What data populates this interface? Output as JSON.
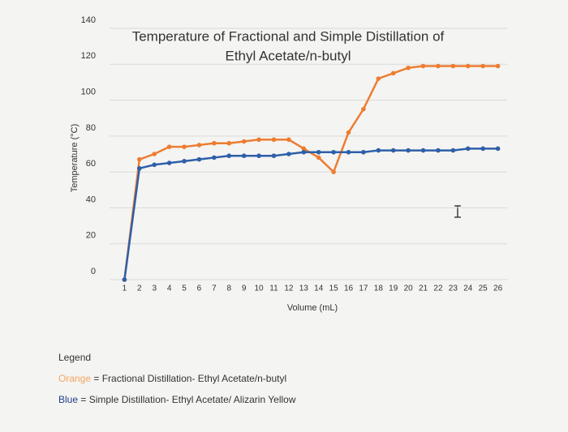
{
  "chart_data": {
    "type": "line",
    "title": [
      "Temperature of Fractional and Simple Distillation of",
      "Ethyl Acetate/n-butyl"
    ],
    "y_label": "Temperature (°C)",
    "x_label": "Volume (mL)",
    "x": [
      1,
      2,
      3,
      4,
      5,
      6,
      7,
      8,
      9,
      10,
      11,
      12,
      13,
      14,
      15,
      16,
      17,
      18,
      19,
      20,
      21,
      22,
      23,
      24,
      25,
      26
    ],
    "series": [
      {
        "color": "#ed7d31",
        "values": [
          0,
          67,
          70,
          74,
          74,
          75,
          76,
          76,
          77,
          78,
          78,
          78,
          73,
          68,
          60,
          82,
          95,
          112,
          115,
          118,
          119,
          119,
          119,
          119,
          119,
          119
        ]
      },
      {
        "color": "#2e5fa8",
        "values": [
          0,
          62,
          64,
          65,
          66,
          67,
          68,
          69,
          69,
          69,
          69,
          70,
          71,
          71,
          71,
          71,
          71,
          72,
          72,
          72,
          72,
          72,
          72,
          73,
          73,
          73
        ]
      }
    ],
    "xlim": [
      0,
      27
    ],
    "xticks": [
      1,
      2,
      3,
      4,
      5,
      6,
      7,
      8,
      9,
      10,
      11,
      12,
      13,
      14,
      15,
      16,
      17,
      18,
      19,
      20,
      21,
      22,
      23,
      24,
      25,
      26
    ],
    "ylim": [
      0,
      140
    ],
    "yticks": [
      0,
      20,
      40,
      60,
      80,
      100,
      120,
      140
    ],
    "grid": true
  },
  "legend_note": {
    "heading": "Legend",
    "lines": [
      {
        "key": "Orange",
        "color": "#f4a460",
        "text": "= Fractional Distillation- Ethyl Acetate/n-butyl"
      },
      {
        "key": "Blue",
        "color": "#1f3e8a",
        "text": "= Simple Distillation- Ethyl Acetate/ Alizarin Yellow"
      }
    ]
  }
}
